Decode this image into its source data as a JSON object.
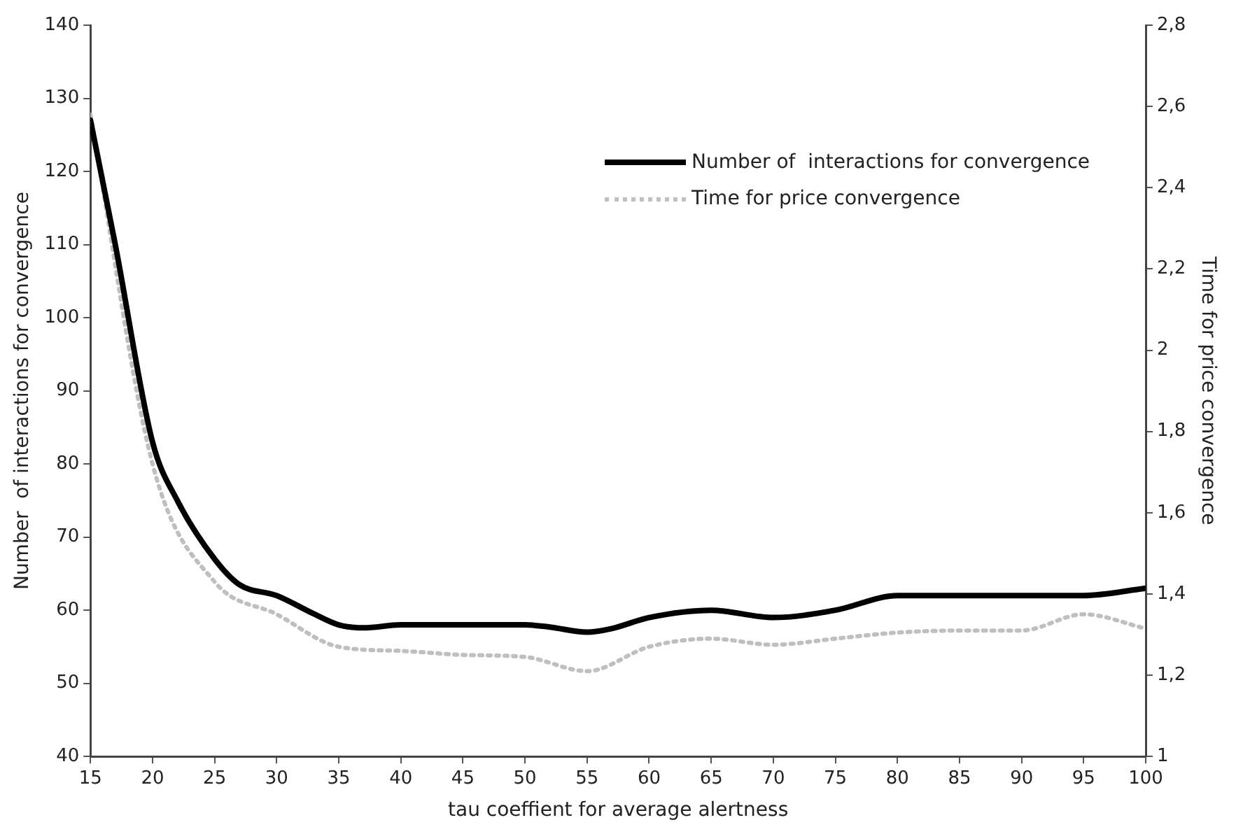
{
  "chart_data": {
    "type": "line",
    "xlabel": "tau coeffient for average alertness",
    "ylabel": "Number  of interactions for convergence",
    "y2label": "Time for price convergence",
    "xlim": [
      15,
      100
    ],
    "xticks": [
      15,
      20,
      25,
      30,
      35,
      40,
      45,
      50,
      55,
      60,
      65,
      70,
      75,
      80,
      85,
      90,
      95,
      100
    ],
    "ylim": [
      40,
      140
    ],
    "yticks": [
      40,
      50,
      60,
      70,
      80,
      90,
      100,
      110,
      120,
      130,
      140
    ],
    "y2lim": [
      1,
      2.8
    ],
    "y2ticks": [
      1,
      {
        "value": 1.2,
        "label": "1,2"
      },
      {
        "value": 1.4,
        "label": "1,4"
      },
      {
        "value": 1.6,
        "label": "1,6"
      },
      {
        "value": 1.8,
        "label": "1,8"
      },
      2,
      {
        "value": 2.2,
        "label": "2,2"
      },
      {
        "value": 2.4,
        "label": "2,4"
      },
      {
        "value": 2.6,
        "label": "2,6"
      },
      {
        "value": 2.8,
        "label": "2,8"
      }
    ],
    "legend": "top right",
    "marker": "none",
    "grid": false,
    "series": [
      {
        "name": "Number of  interactions for convergence",
        "color": "#000000",
        "line_style": "solid",
        "x": [
          15,
          17,
          20,
          22,
          25,
          27,
          30,
          33,
          35,
          37,
          40,
          45,
          50,
          52,
          55,
          57,
          60,
          65,
          70,
          75,
          80,
          85,
          90,
          95,
          100
        ],
        "values": [
          127,
          110,
          83,
          75,
          67,
          63.5,
          62,
          59.5,
          58,
          57.6,
          58,
          58,
          58,
          57.7,
          57,
          57.5,
          59,
          60,
          59,
          60,
          62,
          62,
          62,
          62,
          63
        ]
      },
      {
        "name": "Time for price convergence",
        "color": "#bfbfbf",
        "line_style": "dotted",
        "axis": "y2",
        "x": [
          15,
          20,
          25,
          30,
          35,
          40,
          45,
          50,
          55,
          60,
          65,
          70,
          75,
          80,
          85,
          90,
          95,
          100
        ],
        "values": [
          2.58,
          1.72,
          1.43,
          1.35,
          1.27,
          1.26,
          1.25,
          1.245,
          1.21,
          1.27,
          1.29,
          1.275,
          1.29,
          1.305,
          1.31,
          1.31,
          1.35,
          1.315
        ]
      }
    ]
  }
}
